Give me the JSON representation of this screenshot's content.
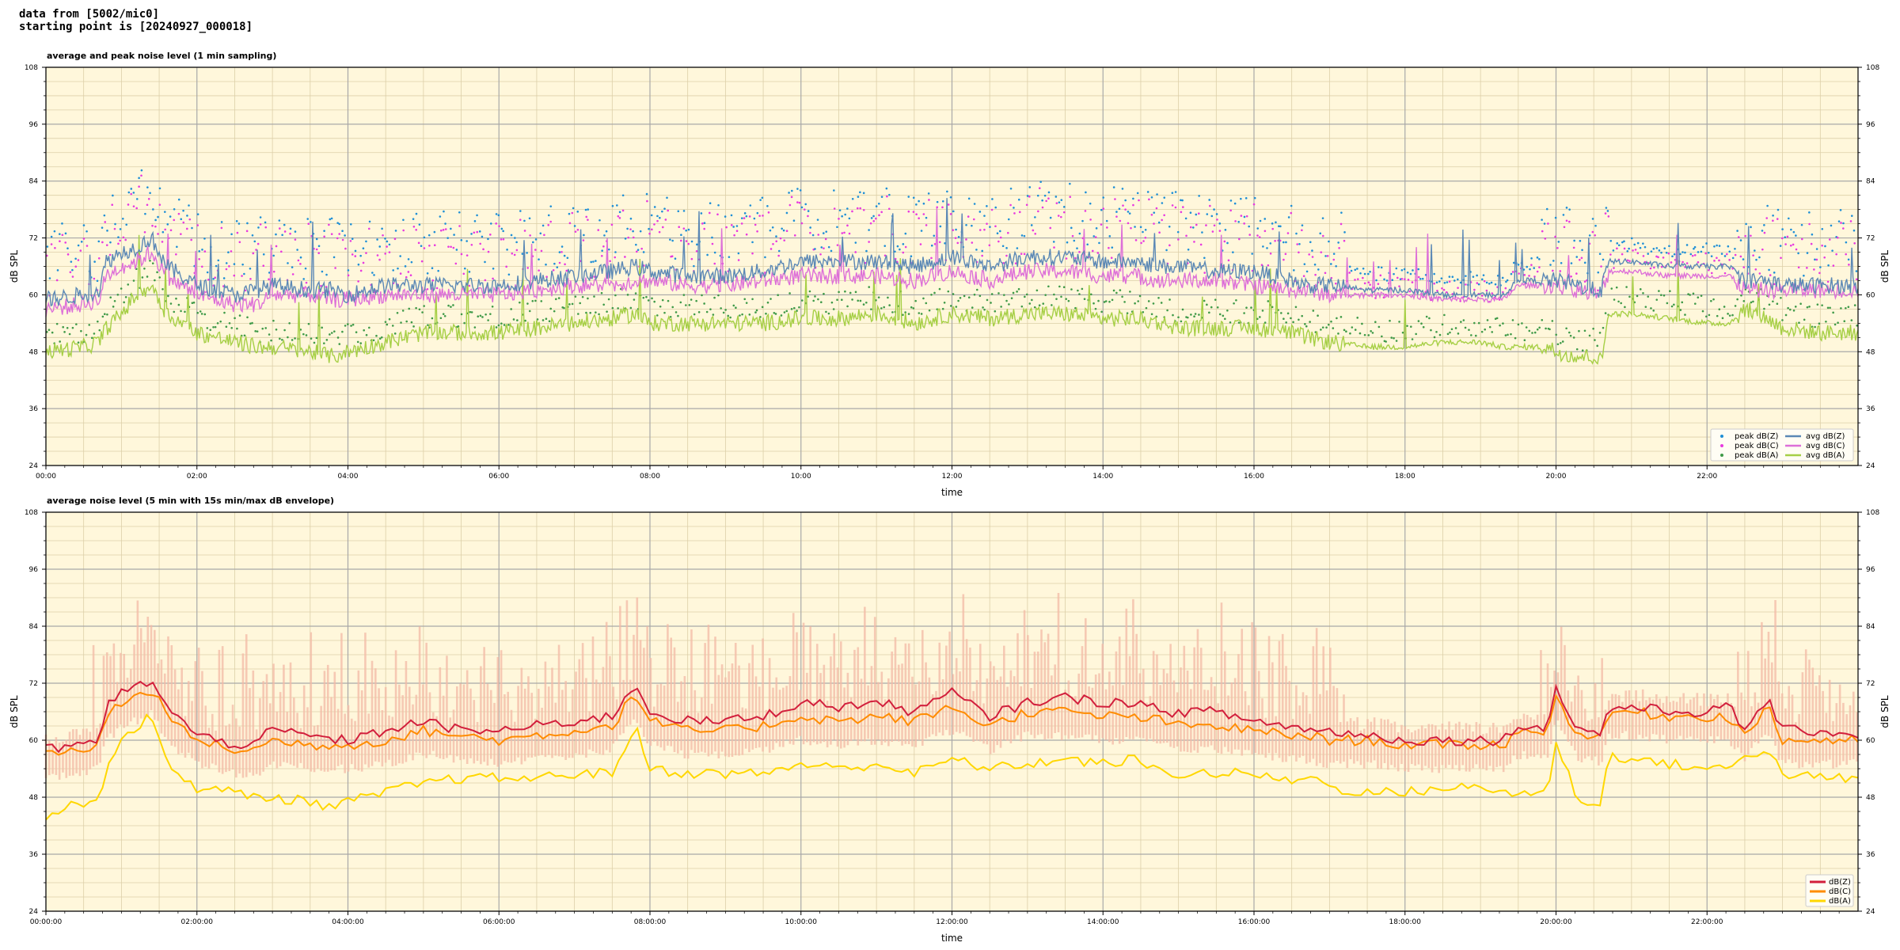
{
  "header": {
    "line1": "data from [5002/mic0]",
    "line2": "starting point is [20240927_000018]"
  },
  "colors": {
    "plot_background": "#fff7db",
    "grid_major": "#a8a8a8",
    "grid_minor": "#dccfa8",
    "peak_z": "#1f8fd6",
    "peak_c": "#e83adf",
    "peak_a": "#3f9a48",
    "avg_z": "#5b88b5",
    "avg_c": "#dd6fd8",
    "avg_a": "#a6cf45",
    "env_fill": "#f3b9a6",
    "dbz": "#d21f3c",
    "dbc": "#ff8c00",
    "dba": "#ffd700"
  },
  "chart_data": [
    {
      "type": "line",
      "title": "average and peak noise level (1 min sampling)",
      "xlabel": "time",
      "ylabel": "dB SPL",
      "ylim": [
        24,
        108
      ],
      "xlim": [
        0,
        24
      ],
      "yticks": [
        "24",
        "36",
        "48",
        "60",
        "72",
        "84",
        "96",
        "108"
      ],
      "xtick_labels": [
        "00:00",
        "02:00",
        "04:00",
        "06:00",
        "08:00",
        "10:00",
        "12:00",
        "14:00",
        "16:00",
        "18:00",
        "20:00",
        "22:00"
      ],
      "grid": true,
      "legend_position": "bottom-right",
      "legend": [
        {
          "label": "peak dB(Z)",
          "kind": "dot",
          "color": "#1f8fd6"
        },
        {
          "label": "peak dB(C)",
          "kind": "dot",
          "color": "#e83adf"
        },
        {
          "label": "peak dB(A)",
          "kind": "dot",
          "color": "#3f9a48"
        },
        {
          "label": "avg dB(Z)",
          "kind": "line",
          "color": "#5b88b5"
        },
        {
          "label": "avg dB(C)",
          "kind": "line",
          "color": "#dd6fd8"
        },
        {
          "label": "avg dB(A)",
          "kind": "line",
          "color": "#a6cf45"
        }
      ],
      "x_hours": [
        0,
        0.5,
        0.7,
        0.8,
        1.0,
        1.2,
        1.4,
        1.6,
        2.0,
        2.5,
        2.8,
        3.0,
        3.5,
        3.8,
        4.0,
        4.5,
        5.0,
        5.5,
        6.0,
        6.5,
        7.0,
        7.5,
        7.8,
        8.0,
        8.5,
        9.0,
        9.5,
        10.0,
        10.5,
        11.0,
        11.5,
        12.0,
        12.5,
        13.0,
        13.5,
        14.0,
        14.4,
        14.8,
        15.0,
        15.5,
        16.0,
        16.5,
        16.7,
        17.0,
        17.5,
        18.0,
        18.5,
        19.0,
        19.3,
        19.5,
        19.8,
        19.9,
        20.0,
        20.3,
        20.5,
        20.6,
        20.7,
        21.0,
        21.5,
        22.0,
        22.3,
        22.5,
        22.8,
        23.0,
        23.5,
        24.0
      ],
      "series": [
        {
          "name": "avg dB(Z)",
          "values": [
            59,
            60,
            61,
            67,
            69,
            70,
            72,
            66,
            62,
            60,
            61,
            62,
            61,
            61,
            60,
            62,
            62,
            62,
            62,
            63,
            64,
            65,
            66,
            65,
            64,
            64,
            65,
            67,
            67,
            67,
            66,
            68,
            66,
            68,
            68,
            67,
            67,
            66,
            66,
            65,
            65,
            63,
            62,
            62,
            61,
            61,
            60,
            60,
            60,
            63,
            63,
            63,
            63,
            62,
            61,
            61,
            67,
            67,
            66,
            66,
            66,
            63,
            63,
            62,
            62,
            62
          ]
        },
        {
          "name": "avg dB(C)",
          "values": [
            57,
            58,
            59,
            64,
            66,
            67,
            69,
            64,
            60,
            58,
            58,
            60,
            60,
            59,
            59,
            60,
            60,
            60,
            60,
            61,
            62,
            62,
            63,
            63,
            62,
            62,
            63,
            64,
            64,
            64,
            63,
            65,
            63,
            65,
            65,
            64,
            64,
            63,
            63,
            63,
            62,
            61,
            61,
            60,
            60,
            60,
            59,
            59,
            59,
            62,
            62,
            62,
            62,
            61,
            60,
            60,
            65,
            65,
            64,
            64,
            64,
            61,
            61,
            61,
            61,
            61
          ]
        },
        {
          "name": "avg dB(A)",
          "values": [
            48,
            49,
            50,
            53,
            56,
            60,
            62,
            56,
            52,
            50,
            49,
            49,
            48,
            47,
            48,
            50,
            52,
            52,
            52,
            53,
            54,
            55,
            56,
            54,
            54,
            54,
            54,
            55,
            55,
            56,
            54,
            56,
            55,
            56,
            56,
            55,
            55,
            54,
            53,
            53,
            53,
            52,
            51,
            50,
            49,
            49,
            50,
            50,
            49,
            49,
            49,
            49,
            48,
            47,
            47,
            46,
            56,
            56,
            55,
            54,
            54,
            57,
            55,
            53,
            52,
            52
          ]
        }
      ],
      "annotations": "dense scatter of peak dB(Z)/dB(C)/dB(A) minute samples above each avg line"
    },
    {
      "type": "area",
      "title": "average noise level (5 min with 15s min/max dB envelope)",
      "xlabel": "time",
      "ylabel": "dB SPL",
      "ylim": [
        24,
        108
      ],
      "xlim": [
        0,
        24
      ],
      "yticks": [
        "24",
        "36",
        "48",
        "60",
        "72",
        "84",
        "96",
        "108"
      ],
      "xtick_labels": [
        "00:00:00",
        "02:00:00",
        "04:00:00",
        "06:00:00",
        "08:00:00",
        "10:00:00",
        "12:00:00",
        "14:00:00",
        "16:00:00",
        "18:00:00",
        "20:00:00",
        "22:00:00"
      ],
      "grid": true,
      "legend_position": "bottom-right",
      "legend": [
        {
          "label": "dB(Z)",
          "kind": "line",
          "color": "#d21f3c"
        },
        {
          "label": "dB(C)",
          "kind": "line",
          "color": "#ff8c00"
        },
        {
          "label": "dB(A)",
          "kind": "line",
          "color": "#ffd700"
        }
      ],
      "x_hours": [
        0,
        0.5,
        0.7,
        0.8,
        1.0,
        1.2,
        1.4,
        1.6,
        2.0,
        2.5,
        2.8,
        3.0,
        3.5,
        3.8,
        4.0,
        4.5,
        5.0,
        5.5,
        6.0,
        6.5,
        7.0,
        7.5,
        7.8,
        8.0,
        8.5,
        9.0,
        9.5,
        10.0,
        10.5,
        11.0,
        11.5,
        12.0,
        12.5,
        13.0,
        13.5,
        14.0,
        14.4,
        14.8,
        15.0,
        15.5,
        16.0,
        16.5,
        16.7,
        17.0,
        17.5,
        18.0,
        18.5,
        19.0,
        19.3,
        19.5,
        19.8,
        19.9,
        20.0,
        20.3,
        20.5,
        20.6,
        20.7,
        21.0,
        21.5,
        22.0,
        22.3,
        22.5,
        22.8,
        23.0,
        23.5,
        24.0
      ],
      "series": [
        {
          "name": "dB(Z)",
          "values": [
            58,
            59,
            60,
            67,
            70,
            71,
            73,
            67,
            61,
            59,
            60,
            62,
            61,
            60,
            60,
            62,
            64,
            62,
            62,
            63,
            64,
            65,
            72,
            66,
            64,
            64,
            65,
            68,
            67,
            68,
            66,
            70,
            65,
            68,
            69,
            68,
            68,
            66,
            66,
            66,
            64,
            63,
            62,
            62,
            61,
            60,
            60,
            60,
            60,
            63,
            63,
            63,
            71,
            62,
            62,
            61,
            67,
            67,
            66,
            66,
            67,
            62,
            69,
            62,
            62,
            61
          ]
        },
        {
          "name": "dB(C)",
          "values": [
            57,
            58,
            59,
            65,
            68,
            69,
            71,
            65,
            60,
            58,
            58,
            60,
            59,
            59,
            59,
            60,
            62,
            61,
            60,
            61,
            62,
            63,
            70,
            64,
            62,
            62,
            63,
            65,
            64,
            65,
            64,
            67,
            63,
            66,
            66,
            65,
            65,
            64,
            63,
            63,
            62,
            61,
            61,
            60,
            60,
            59,
            59,
            59,
            59,
            62,
            62,
            62,
            69,
            61,
            61,
            60,
            66,
            66,
            65,
            65,
            65,
            61,
            67,
            60,
            60,
            60
          ]
        },
        {
          "name": "dB(A)",
          "values": [
            44,
            47,
            48,
            54,
            60,
            63,
            65,
            55,
            50,
            49,
            48,
            48,
            47,
            46,
            47,
            49,
            51,
            52,
            52,
            52,
            53,
            53,
            63,
            54,
            53,
            53,
            53,
            55,
            54,
            55,
            53,
            56,
            54,
            55,
            56,
            55,
            56,
            53,
            53,
            53,
            53,
            51,
            53,
            50,
            49,
            49,
            50,
            50,
            49,
            49,
            49,
            49,
            60,
            47,
            47,
            46,
            57,
            56,
            55,
            54,
            54,
            57,
            58,
            53,
            52,
            52
          ]
        }
      ],
      "envelope": {
        "min_offset_db": -3,
        "max_peak_db": 90
      }
    }
  ]
}
